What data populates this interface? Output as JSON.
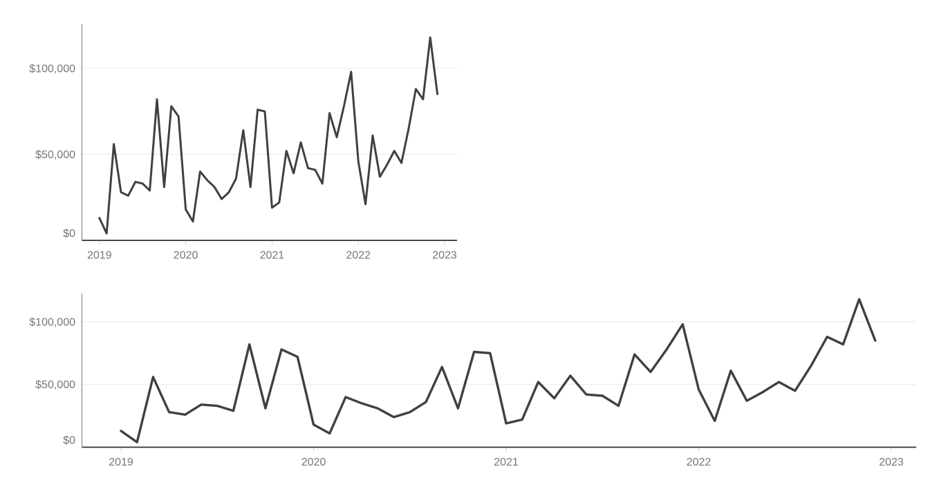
{
  "page": {
    "background": "#ffffff",
    "title": ""
  },
  "colors": {
    "line": "#404040",
    "gridline": "#e9e9e9",
    "axis": "#2e2e2e",
    "spine": "#757575",
    "year_tick": "#cccccc",
    "tick_label": "#767676"
  },
  "charts": [
    {
      "name": "monthly-series-chart-small",
      "y_axis_labels": [
        "$0",
        "$50,000",
        "$100,000"
      ],
      "x_axis_labels": [
        "2019",
        "2020",
        "2021",
        "2022",
        "2023"
      ]
    },
    {
      "name": "monthly-series-chart-wide",
      "y_axis_labels": [
        "$0",
        "$50,000",
        "$100,000"
      ],
      "x_axis_labels": [
        "2019",
        "2020",
        "2021",
        "2022",
        "2023"
      ]
    }
  ],
  "chart_data": [
    {
      "type": "line",
      "title": "",
      "xlabel": "",
      "ylabel": "",
      "x": [
        "2019-01",
        "2019-02",
        "2019-03",
        "2019-04",
        "2019-05",
        "2019-06",
        "2019-07",
        "2019-08",
        "2019-09",
        "2019-10",
        "2019-11",
        "2019-12",
        "2020-01",
        "2020-02",
        "2020-03",
        "2020-04",
        "2020-05",
        "2020-06",
        "2020-07",
        "2020-08",
        "2020-09",
        "2020-10",
        "2020-11",
        "2020-12",
        "2021-01",
        "2021-02",
        "2021-03",
        "2021-04",
        "2021-05",
        "2021-06",
        "2021-07",
        "2021-08",
        "2021-09",
        "2021-10",
        "2021-11",
        "2021-12",
        "2022-01",
        "2022-02",
        "2022-03",
        "2022-04",
        "2022-05",
        "2022-06",
        "2022-07",
        "2022-08",
        "2022-09",
        "2022-10",
        "2022-11",
        "2022-12"
      ],
      "values": [
        13000,
        4000,
        56000,
        28000,
        26000,
        34000,
        33000,
        29000,
        82000,
        31000,
        78000,
        72000,
        18000,
        11000,
        40000,
        35000,
        31000,
        24000,
        28000,
        36000,
        64000,
        31000,
        76000,
        75000,
        19000,
        22000,
        52000,
        39000,
        57000,
        42000,
        41000,
        33000,
        74000,
        60000,
        78000,
        98000,
        46000,
        21000,
        61000,
        37000,
        44000,
        52000,
        45000,
        65000,
        88000,
        82000,
        118000,
        85000
      ],
      "y_ticks": [
        0,
        50000,
        100000
      ],
      "y_tick_labels": [
        "$0",
        "$50,000",
        "$100,000"
      ],
      "x_tick_labels": [
        "2019",
        "2020",
        "2021",
        "2022",
        "2023"
      ],
      "ylim": [
        0,
        126000
      ],
      "grid": "horizontal-light",
      "legend": "none"
    },
    {
      "type": "line",
      "title": "",
      "xlabel": "",
      "ylabel": "",
      "x": [
        "2019-01",
        "2019-02",
        "2019-03",
        "2019-04",
        "2019-05",
        "2019-06",
        "2019-07",
        "2019-08",
        "2019-09",
        "2019-10",
        "2019-11",
        "2019-12",
        "2020-01",
        "2020-02",
        "2020-03",
        "2020-04",
        "2020-05",
        "2020-06",
        "2020-07",
        "2020-08",
        "2020-09",
        "2020-10",
        "2020-11",
        "2020-12",
        "2021-01",
        "2021-02",
        "2021-03",
        "2021-04",
        "2021-05",
        "2021-06",
        "2021-07",
        "2021-08",
        "2021-09",
        "2021-10",
        "2021-11",
        "2021-12",
        "2022-01",
        "2022-02",
        "2022-03",
        "2022-04",
        "2022-05",
        "2022-06",
        "2022-07",
        "2022-08",
        "2022-09",
        "2022-10",
        "2022-11",
        "2022-12"
      ],
      "values": [
        13000,
        4000,
        56000,
        28000,
        26000,
        34000,
        33000,
        29000,
        82000,
        31000,
        78000,
        72000,
        18000,
        11000,
        40000,
        35000,
        31000,
        24000,
        28000,
        36000,
        64000,
        31000,
        76000,
        75000,
        19000,
        22000,
        52000,
        39000,
        57000,
        42000,
        41000,
        33000,
        74000,
        60000,
        78000,
        98000,
        46000,
        21000,
        61000,
        37000,
        44000,
        52000,
        45000,
        65000,
        88000,
        82000,
        118000,
        85000
      ],
      "y_ticks": [
        0,
        50000,
        100000
      ],
      "y_tick_labels": [
        "$0",
        "$50,000",
        "$100,000"
      ],
      "x_tick_labels": [
        "2019",
        "2020",
        "2021",
        "2022",
        "2023"
      ],
      "ylim": [
        0,
        123000
      ],
      "grid": "horizontal-light",
      "legend": "none"
    }
  ]
}
